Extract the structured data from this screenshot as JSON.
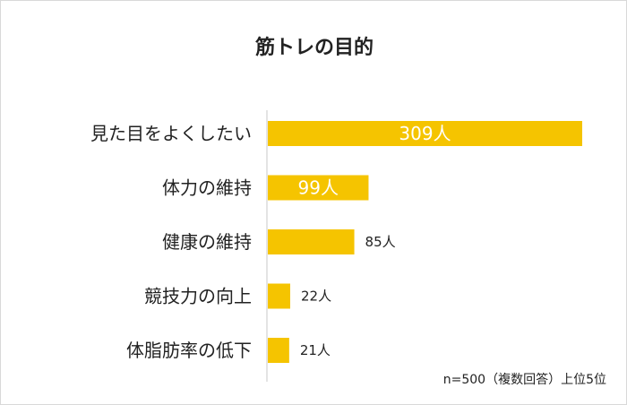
{
  "chart_data": {
    "type": "bar",
    "orientation": "horizontal",
    "title": "筋トレの目的",
    "categories": [
      "見た目をよくしたい",
      "体力の維持",
      "健康の維持",
      "競技力の向上",
      "体脂肪率の低下"
    ],
    "values": [
      309,
      99,
      85,
      22,
      21
    ],
    "value_labels": [
      "309人",
      "99人",
      "85人",
      "22人",
      "21人"
    ],
    "xlim": [
      0,
      500
    ],
    "bar_color": "#F5C400",
    "grid": false,
    "note": "n=500（複数回答）上位5位"
  }
}
